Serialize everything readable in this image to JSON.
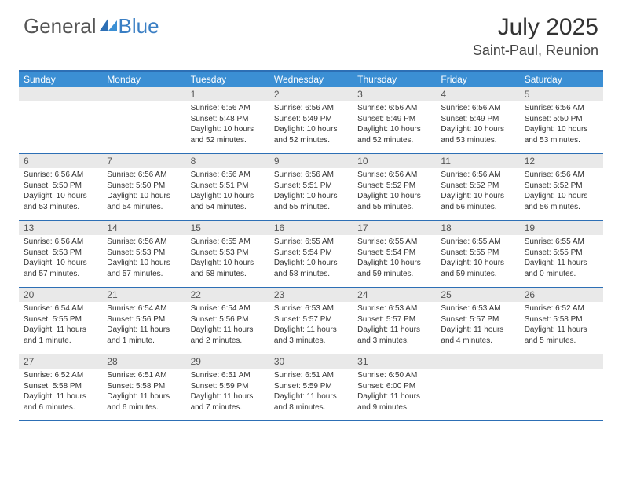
{
  "logo": {
    "part1": "General",
    "part2": "Blue"
  },
  "title": "July 2025",
  "location": "Saint-Paul, Reunion",
  "dow": [
    "Sunday",
    "Monday",
    "Tuesday",
    "Wednesday",
    "Thursday",
    "Friday",
    "Saturday"
  ],
  "colors": {
    "header_bar": "#3b8fd4",
    "border": "#2d6fb5",
    "daynum_bg": "#e9e9e9",
    "logo_blue": "#3b7fc4"
  },
  "weeks": [
    [
      {
        "n": "",
        "sr": "",
        "ss": "",
        "d1": "",
        "d2": ""
      },
      {
        "n": "",
        "sr": "",
        "ss": "",
        "d1": "",
        "d2": ""
      },
      {
        "n": "1",
        "sr": "Sunrise: 6:56 AM",
        "ss": "Sunset: 5:48 PM",
        "d1": "Daylight: 10 hours",
        "d2": "and 52 minutes."
      },
      {
        "n": "2",
        "sr": "Sunrise: 6:56 AM",
        "ss": "Sunset: 5:49 PM",
        "d1": "Daylight: 10 hours",
        "d2": "and 52 minutes."
      },
      {
        "n": "3",
        "sr": "Sunrise: 6:56 AM",
        "ss": "Sunset: 5:49 PM",
        "d1": "Daylight: 10 hours",
        "d2": "and 52 minutes."
      },
      {
        "n": "4",
        "sr": "Sunrise: 6:56 AM",
        "ss": "Sunset: 5:49 PM",
        "d1": "Daylight: 10 hours",
        "d2": "and 53 minutes."
      },
      {
        "n": "5",
        "sr": "Sunrise: 6:56 AM",
        "ss": "Sunset: 5:50 PM",
        "d1": "Daylight: 10 hours",
        "d2": "and 53 minutes."
      }
    ],
    [
      {
        "n": "6",
        "sr": "Sunrise: 6:56 AM",
        "ss": "Sunset: 5:50 PM",
        "d1": "Daylight: 10 hours",
        "d2": "and 53 minutes."
      },
      {
        "n": "7",
        "sr": "Sunrise: 6:56 AM",
        "ss": "Sunset: 5:50 PM",
        "d1": "Daylight: 10 hours",
        "d2": "and 54 minutes."
      },
      {
        "n": "8",
        "sr": "Sunrise: 6:56 AM",
        "ss": "Sunset: 5:51 PM",
        "d1": "Daylight: 10 hours",
        "d2": "and 54 minutes."
      },
      {
        "n": "9",
        "sr": "Sunrise: 6:56 AM",
        "ss": "Sunset: 5:51 PM",
        "d1": "Daylight: 10 hours",
        "d2": "and 55 minutes."
      },
      {
        "n": "10",
        "sr": "Sunrise: 6:56 AM",
        "ss": "Sunset: 5:52 PM",
        "d1": "Daylight: 10 hours",
        "d2": "and 55 minutes."
      },
      {
        "n": "11",
        "sr": "Sunrise: 6:56 AM",
        "ss": "Sunset: 5:52 PM",
        "d1": "Daylight: 10 hours",
        "d2": "and 56 minutes."
      },
      {
        "n": "12",
        "sr": "Sunrise: 6:56 AM",
        "ss": "Sunset: 5:52 PM",
        "d1": "Daylight: 10 hours",
        "d2": "and 56 minutes."
      }
    ],
    [
      {
        "n": "13",
        "sr": "Sunrise: 6:56 AM",
        "ss": "Sunset: 5:53 PM",
        "d1": "Daylight: 10 hours",
        "d2": "and 57 minutes."
      },
      {
        "n": "14",
        "sr": "Sunrise: 6:56 AM",
        "ss": "Sunset: 5:53 PM",
        "d1": "Daylight: 10 hours",
        "d2": "and 57 minutes."
      },
      {
        "n": "15",
        "sr": "Sunrise: 6:55 AM",
        "ss": "Sunset: 5:53 PM",
        "d1": "Daylight: 10 hours",
        "d2": "and 58 minutes."
      },
      {
        "n": "16",
        "sr": "Sunrise: 6:55 AM",
        "ss": "Sunset: 5:54 PM",
        "d1": "Daylight: 10 hours",
        "d2": "and 58 minutes."
      },
      {
        "n": "17",
        "sr": "Sunrise: 6:55 AM",
        "ss": "Sunset: 5:54 PM",
        "d1": "Daylight: 10 hours",
        "d2": "and 59 minutes."
      },
      {
        "n": "18",
        "sr": "Sunrise: 6:55 AM",
        "ss": "Sunset: 5:55 PM",
        "d1": "Daylight: 10 hours",
        "d2": "and 59 minutes."
      },
      {
        "n": "19",
        "sr": "Sunrise: 6:55 AM",
        "ss": "Sunset: 5:55 PM",
        "d1": "Daylight: 11 hours",
        "d2": "and 0 minutes."
      }
    ],
    [
      {
        "n": "20",
        "sr": "Sunrise: 6:54 AM",
        "ss": "Sunset: 5:55 PM",
        "d1": "Daylight: 11 hours",
        "d2": "and 1 minute."
      },
      {
        "n": "21",
        "sr": "Sunrise: 6:54 AM",
        "ss": "Sunset: 5:56 PM",
        "d1": "Daylight: 11 hours",
        "d2": "and 1 minute."
      },
      {
        "n": "22",
        "sr": "Sunrise: 6:54 AM",
        "ss": "Sunset: 5:56 PM",
        "d1": "Daylight: 11 hours",
        "d2": "and 2 minutes."
      },
      {
        "n": "23",
        "sr": "Sunrise: 6:53 AM",
        "ss": "Sunset: 5:57 PM",
        "d1": "Daylight: 11 hours",
        "d2": "and 3 minutes."
      },
      {
        "n": "24",
        "sr": "Sunrise: 6:53 AM",
        "ss": "Sunset: 5:57 PM",
        "d1": "Daylight: 11 hours",
        "d2": "and 3 minutes."
      },
      {
        "n": "25",
        "sr": "Sunrise: 6:53 AM",
        "ss": "Sunset: 5:57 PM",
        "d1": "Daylight: 11 hours",
        "d2": "and 4 minutes."
      },
      {
        "n": "26",
        "sr": "Sunrise: 6:52 AM",
        "ss": "Sunset: 5:58 PM",
        "d1": "Daylight: 11 hours",
        "d2": "and 5 minutes."
      }
    ],
    [
      {
        "n": "27",
        "sr": "Sunrise: 6:52 AM",
        "ss": "Sunset: 5:58 PM",
        "d1": "Daylight: 11 hours",
        "d2": "and 6 minutes."
      },
      {
        "n": "28",
        "sr": "Sunrise: 6:51 AM",
        "ss": "Sunset: 5:58 PM",
        "d1": "Daylight: 11 hours",
        "d2": "and 6 minutes."
      },
      {
        "n": "29",
        "sr": "Sunrise: 6:51 AM",
        "ss": "Sunset: 5:59 PM",
        "d1": "Daylight: 11 hours",
        "d2": "and 7 minutes."
      },
      {
        "n": "30",
        "sr": "Sunrise: 6:51 AM",
        "ss": "Sunset: 5:59 PM",
        "d1": "Daylight: 11 hours",
        "d2": "and 8 minutes."
      },
      {
        "n": "31",
        "sr": "Sunrise: 6:50 AM",
        "ss": "Sunset: 6:00 PM",
        "d1": "Daylight: 11 hours",
        "d2": "and 9 minutes."
      },
      {
        "n": "",
        "sr": "",
        "ss": "",
        "d1": "",
        "d2": ""
      },
      {
        "n": "",
        "sr": "",
        "ss": "",
        "d1": "",
        "d2": ""
      }
    ]
  ]
}
